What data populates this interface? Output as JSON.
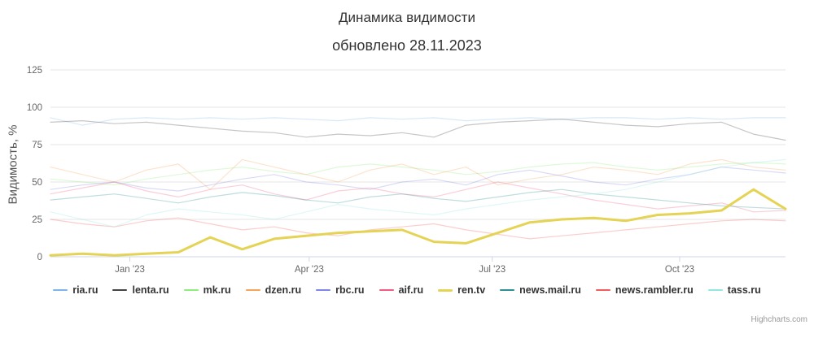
{
  "credits": "Highcharts.com",
  "chart_data": {
    "type": "line",
    "title": "Динамика видимости",
    "subtitle": "обновлено 28.11.2023",
    "xlabel": "",
    "ylabel": "Видимость, %",
    "ylim": [
      0,
      125
    ],
    "yticks": [
      0,
      25,
      50,
      75,
      100,
      125
    ],
    "xticks": [
      {
        "label": "Jan '23",
        "pos": 0.108
      },
      {
        "label": "Apr '23",
        "pos": 0.352
      },
      {
        "label": "Jul '23",
        "pos": 0.601
      },
      {
        "label": "Oct '23",
        "pos": 0.856
      }
    ],
    "grid": true,
    "legend_position": "bottom",
    "highlight_series": "ren.tv",
    "x_range_note": "Dec 2022 - Nov 2023, semi-monthly points",
    "series": [
      {
        "name": "ria.ru",
        "color": "#7cb5ec",
        "values": [
          93,
          88,
          92,
          93,
          92,
          93,
          92,
          93,
          92,
          91,
          93,
          92,
          93,
          91,
          92,
          93,
          92,
          93,
          93,
          92,
          93,
          92,
          93,
          93
        ]
      },
      {
        "name": "lenta.ru",
        "color": "#434348",
        "values": [
          90,
          91,
          89,
          90,
          88,
          86,
          84,
          83,
          80,
          82,
          81,
          83,
          80,
          88,
          90,
          91,
          92,
          90,
          88,
          87,
          89,
          90,
          82,
          78
        ]
      },
      {
        "name": "mk.ru",
        "color": "#90ed7d",
        "values": [
          52,
          50,
          48,
          52,
          55,
          58,
          60,
          57,
          55,
          60,
          62,
          60,
          58,
          55,
          57,
          60,
          62,
          63,
          60,
          58,
          60,
          62,
          63,
          62
        ]
      },
      {
        "name": "dzen.ru",
        "color": "#f7a35c",
        "values": [
          60,
          55,
          50,
          58,
          62,
          45,
          65,
          60,
          55,
          50,
          58,
          62,
          55,
          60,
          48,
          52,
          55,
          60,
          58,
          55,
          62,
          65,
          60,
          58
        ]
      },
      {
        "name": "rbc.ru",
        "color": "#8085e9",
        "values": [
          45,
          48,
          50,
          46,
          44,
          48,
          52,
          55,
          50,
          48,
          45,
          50,
          52,
          48,
          55,
          58,
          54,
          50,
          48,
          52,
          55,
          60,
          58,
          56
        ]
      },
      {
        "name": "aif.ru",
        "color": "#f15c80",
        "values": [
          42,
          46,
          50,
          44,
          40,
          45,
          48,
          42,
          38,
          44,
          46,
          42,
          40,
          45,
          50,
          46,
          42,
          38,
          35,
          32,
          34,
          36,
          30,
          31
        ]
      },
      {
        "name": "ren.tv",
        "color": "#e4d354",
        "values": [
          1,
          2,
          1,
          2,
          3,
          13,
          5,
          12,
          14,
          16,
          17,
          18,
          10,
          9,
          16,
          23,
          25,
          26,
          24,
          28,
          29,
          31,
          45,
          32
        ]
      },
      {
        "name": "news.mail.ru",
        "color": "#2b908f",
        "values": [
          38,
          40,
          42,
          39,
          36,
          40,
          43,
          41,
          38,
          36,
          40,
          42,
          39,
          37,
          40,
          43,
          45,
          42,
          40,
          38,
          36,
          34,
          33,
          32
        ]
      },
      {
        "name": "news.rambler.ru",
        "color": "#f45b5b",
        "values": [
          25,
          22,
          20,
          24,
          26,
          22,
          18,
          20,
          16,
          14,
          18,
          20,
          22,
          18,
          15,
          12,
          14,
          16,
          18,
          20,
          22,
          24,
          25,
          24
        ]
      },
      {
        "name": "tass.ru",
        "color": "#91e8e1",
        "values": [
          30,
          25,
          20,
          28,
          32,
          30,
          28,
          25,
          30,
          35,
          32,
          30,
          28,
          32,
          35,
          38,
          40,
          42,
          45,
          50,
          55,
          60,
          63,
          65
        ]
      }
    ]
  }
}
